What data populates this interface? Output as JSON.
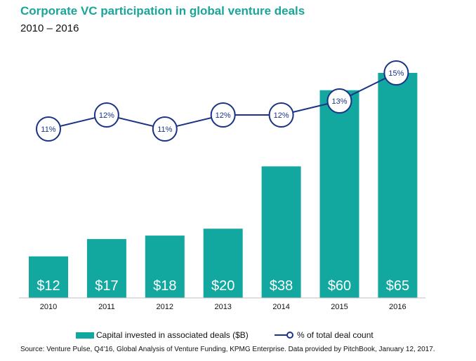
{
  "title": "Corporate VC participation in global venture deals",
  "subtitle": "2010 – 2016",
  "colors": {
    "bar": "#12a8a0",
    "line": "#1a3384",
    "title": "#1aa59a"
  },
  "chart_data": {
    "type": "bar",
    "categories": [
      "2010",
      "2011",
      "2012",
      "2013",
      "2014",
      "2015",
      "2016"
    ],
    "series": [
      {
        "name": "Capital invested in associated deals ($B)",
        "type": "bar",
        "values": [
          12,
          17,
          18,
          20,
          38,
          60,
          65
        ],
        "labels": [
          "$12",
          "$17",
          "$18",
          "$20",
          "$38",
          "$60",
          "$65"
        ]
      },
      {
        "name": "% of total deal count",
        "type": "line",
        "values": [
          11,
          12,
          11,
          12,
          12,
          13,
          15
        ],
        "labels": [
          "11%",
          "12%",
          "11%",
          "12%",
          "12%",
          "13%",
          "15%"
        ]
      }
    ],
    "legend": "bottom",
    "grid": false
  },
  "source": "Source: Venture Pulse, Q4'16, Global Analysis of Venture Funding, KPMG Enterprise. Data provided by PitchBook, January 12, 2017."
}
